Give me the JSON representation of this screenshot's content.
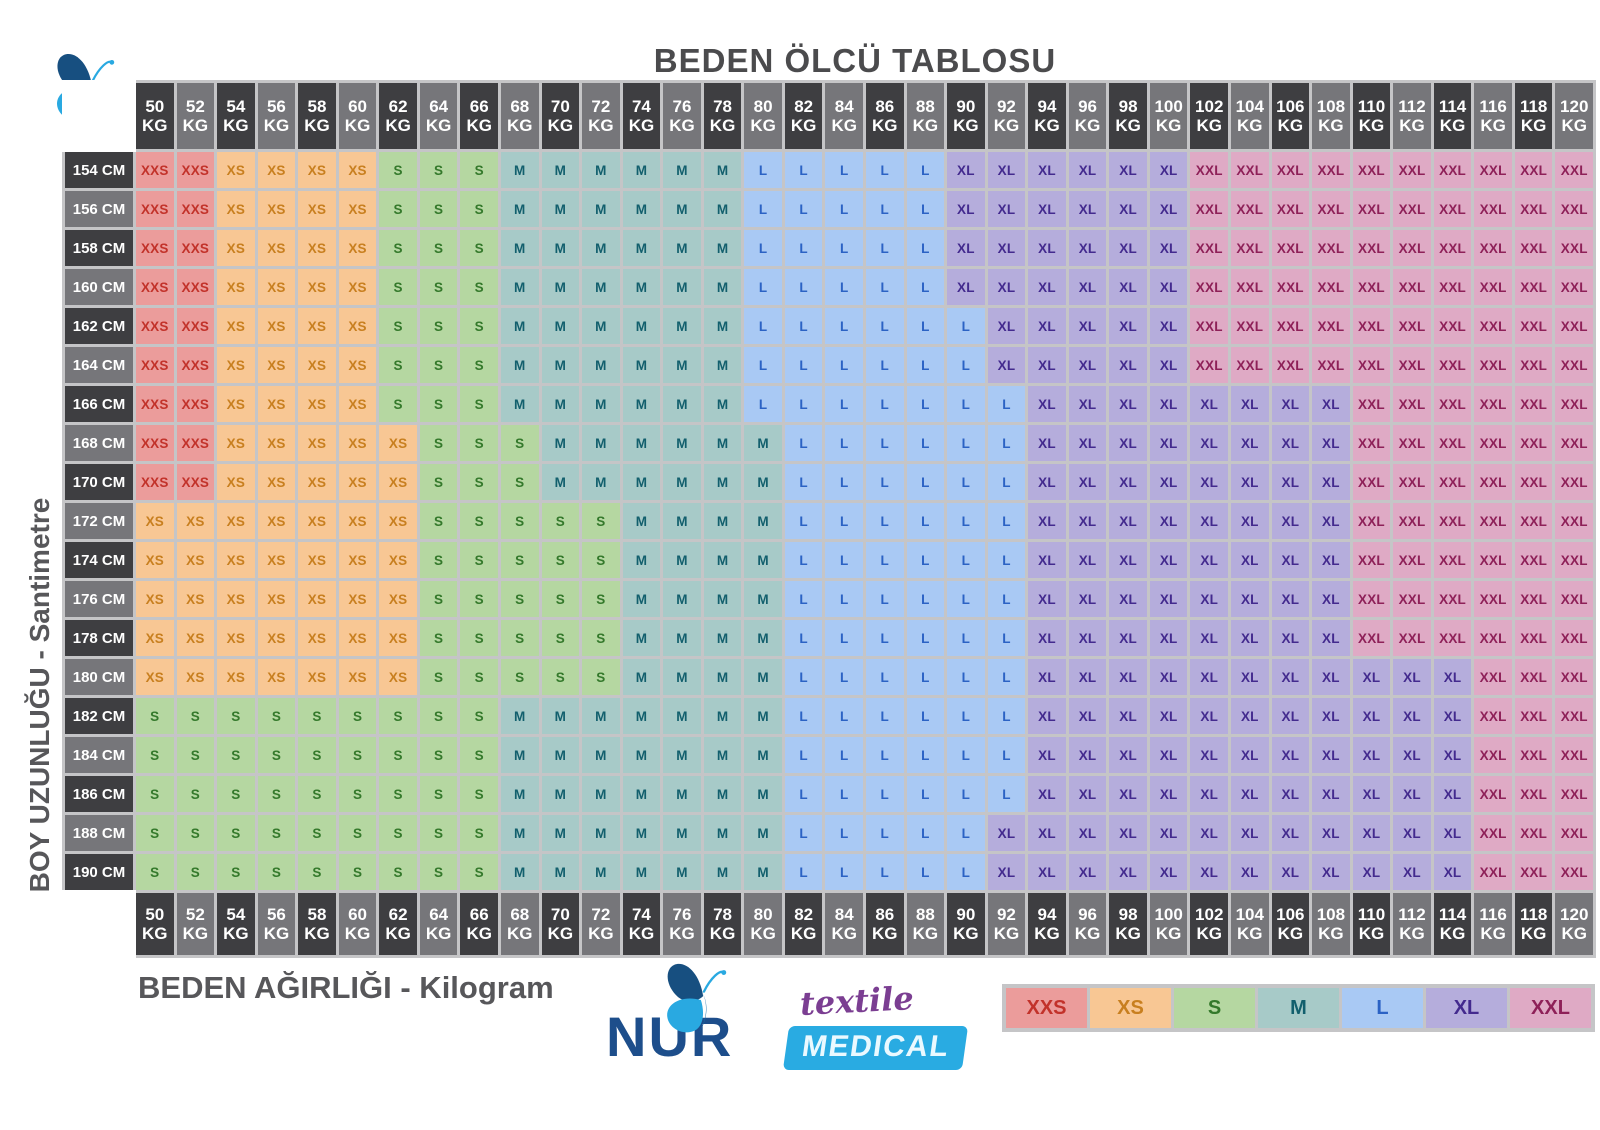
{
  "title": "BEDEN ÖLCÜ TABLOSU",
  "axis": {
    "y": "BOY UZUNLUĞU - Santimetre",
    "x": "BEDEN AĞIRLIĞI - Kilogram"
  },
  "units": {
    "weight": "KG",
    "height": "CM"
  },
  "legend": [
    "XXS",
    "XS",
    "S",
    "M",
    "L",
    "XL",
    "XXL"
  ],
  "size_styles": {
    "XXS": {
      "bg": "#eb9c9b",
      "text": "#c2322a"
    },
    "XS": {
      "bg": "#f8c794",
      "text": "#c87f1f"
    },
    "S": {
      "bg": "#b5d7a1",
      "text": "#34792b"
    },
    "M": {
      "bg": "#a7cac8",
      "text": "#125f6d"
    },
    "L": {
      "bg": "#a9c9f4",
      "text": "#2b62c4"
    },
    "XL": {
      "bg": "#b5addc",
      "text": "#432a8e"
    },
    "XXL": {
      "bg": "#dfaac5",
      "text": "#8e2058"
    }
  },
  "header_colors": {
    "dark": "#3e3e41",
    "light": "#76767a",
    "text": "#ffffff"
  },
  "frame_color": "#c5c5c7",
  "logo": {
    "nur": "NUR",
    "textile": "textile",
    "medical": "MEDICAL"
  },
  "chart_data": {
    "type": "heatmap",
    "title": "BEDEN ÖLCÜ TABLOSU",
    "xlabel": "BEDEN AĞIRLIĞI - Kilogram",
    "ylabel": "BOY UZUNLUĞU - Santimetre",
    "x_weights_kg": [
      50,
      52,
      54,
      56,
      58,
      60,
      62,
      64,
      66,
      68,
      70,
      72,
      74,
      76,
      78,
      80,
      82,
      84,
      86,
      88,
      90,
      92,
      94,
      96,
      98,
      100,
      102,
      104,
      106,
      108,
      110,
      112,
      114,
      116,
      118,
      120
    ],
    "y_heights_cm": [
      154,
      156,
      158,
      160,
      162,
      164,
      166,
      168,
      170,
      172,
      174,
      176,
      178,
      180,
      182,
      184,
      186,
      188,
      190
    ],
    "cell_sizes": [
      [
        "XXS",
        "XXS",
        "XS",
        "XS",
        "XS",
        "XS",
        "S",
        "S",
        "S",
        "M",
        "M",
        "M",
        "M",
        "M",
        "M",
        "L",
        "L",
        "L",
        "L",
        "L",
        "XL",
        "XL",
        "XL",
        "XL",
        "XL",
        "XL",
        "XXL",
        "XXL",
        "XXL",
        "XXL",
        "XXL",
        "XXL",
        "XXL",
        "XXL",
        "XXL",
        "XXL"
      ],
      [
        "XXS",
        "XXS",
        "XS",
        "XS",
        "XS",
        "XS",
        "S",
        "S",
        "S",
        "M",
        "M",
        "M",
        "M",
        "M",
        "M",
        "L",
        "L",
        "L",
        "L",
        "L",
        "XL",
        "XL",
        "XL",
        "XL",
        "XL",
        "XL",
        "XXL",
        "XXL",
        "XXL",
        "XXL",
        "XXL",
        "XXL",
        "XXL",
        "XXL",
        "XXL",
        "XXL"
      ],
      [
        "XXS",
        "XXS",
        "XS",
        "XS",
        "XS",
        "XS",
        "S",
        "S",
        "S",
        "M",
        "M",
        "M",
        "M",
        "M",
        "M",
        "L",
        "L",
        "L",
        "L",
        "L",
        "XL",
        "XL",
        "XL",
        "XL",
        "XL",
        "XL",
        "XXL",
        "XXL",
        "XXL",
        "XXL",
        "XXL",
        "XXL",
        "XXL",
        "XXL",
        "XXL",
        "XXL"
      ],
      [
        "XXS",
        "XXS",
        "XS",
        "XS",
        "XS",
        "XS",
        "S",
        "S",
        "S",
        "M",
        "M",
        "M",
        "M",
        "M",
        "M",
        "L",
        "L",
        "L",
        "L",
        "L",
        "XL",
        "XL",
        "XL",
        "XL",
        "XL",
        "XL",
        "XXL",
        "XXL",
        "XXL",
        "XXL",
        "XXL",
        "XXL",
        "XXL",
        "XXL",
        "XXL",
        "XXL"
      ],
      [
        "XXS",
        "XXS",
        "XS",
        "XS",
        "XS",
        "XS",
        "S",
        "S",
        "S",
        "M",
        "M",
        "M",
        "M",
        "M",
        "M",
        "L",
        "L",
        "L",
        "L",
        "L",
        "L",
        "XL",
        "XL",
        "XL",
        "XL",
        "XL",
        "XXL",
        "XXL",
        "XXL",
        "XXL",
        "XXL",
        "XXL",
        "XXL",
        "XXL",
        "XXL",
        "XXL"
      ],
      [
        "XXS",
        "XXS",
        "XS",
        "XS",
        "XS",
        "XS",
        "S",
        "S",
        "S",
        "M",
        "M",
        "M",
        "M",
        "M",
        "M",
        "L",
        "L",
        "L",
        "L",
        "L",
        "L",
        "XL",
        "XL",
        "XL",
        "XL",
        "XL",
        "XXL",
        "XXL",
        "XXL",
        "XXL",
        "XXL",
        "XXL",
        "XXL",
        "XXL",
        "XXL",
        "XXL"
      ],
      [
        "XXS",
        "XXS",
        "XS",
        "XS",
        "XS",
        "XS",
        "S",
        "S",
        "S",
        "M",
        "M",
        "M",
        "M",
        "M",
        "M",
        "L",
        "L",
        "L",
        "L",
        "L",
        "L",
        "L",
        "XL",
        "XL",
        "XL",
        "XL",
        "XL",
        "XL",
        "XL",
        "XL",
        "XXL",
        "XXL",
        "XXL",
        "XXL",
        "XXL",
        "XXL"
      ],
      [
        "XXS",
        "XXS",
        "XS",
        "XS",
        "XS",
        "XS",
        "XS",
        "S",
        "S",
        "S",
        "M",
        "M",
        "M",
        "M",
        "M",
        "M",
        "L",
        "L",
        "L",
        "L",
        "L",
        "L",
        "XL",
        "XL",
        "XL",
        "XL",
        "XL",
        "XL",
        "XL",
        "XL",
        "XXL",
        "XXL",
        "XXL",
        "XXL",
        "XXL",
        "XXL"
      ],
      [
        "XXS",
        "XXS",
        "XS",
        "XS",
        "XS",
        "XS",
        "XS",
        "S",
        "S",
        "S",
        "M",
        "M",
        "M",
        "M",
        "M",
        "M",
        "L",
        "L",
        "L",
        "L",
        "L",
        "L",
        "XL",
        "XL",
        "XL",
        "XL",
        "XL",
        "XL",
        "XL",
        "XL",
        "XXL",
        "XXL",
        "XXL",
        "XXL",
        "XXL",
        "XXL"
      ],
      [
        "XS",
        "XS",
        "XS",
        "XS",
        "XS",
        "XS",
        "XS",
        "S",
        "S",
        "S",
        "S",
        "S",
        "M",
        "M",
        "M",
        "M",
        "L",
        "L",
        "L",
        "L",
        "L",
        "L",
        "XL",
        "XL",
        "XL",
        "XL",
        "XL",
        "XL",
        "XL",
        "XL",
        "XXL",
        "XXL",
        "XXL",
        "XXL",
        "XXL",
        "XXL"
      ],
      [
        "XS",
        "XS",
        "XS",
        "XS",
        "XS",
        "XS",
        "XS",
        "S",
        "S",
        "S",
        "S",
        "S",
        "M",
        "M",
        "M",
        "M",
        "L",
        "L",
        "L",
        "L",
        "L",
        "L",
        "XL",
        "XL",
        "XL",
        "XL",
        "XL",
        "XL",
        "XL",
        "XL",
        "XXL",
        "XXL",
        "XXL",
        "XXL",
        "XXL",
        "XXL"
      ],
      [
        "XS",
        "XS",
        "XS",
        "XS",
        "XS",
        "XS",
        "XS",
        "S",
        "S",
        "S",
        "S",
        "S",
        "M",
        "M",
        "M",
        "M",
        "L",
        "L",
        "L",
        "L",
        "L",
        "L",
        "XL",
        "XL",
        "XL",
        "XL",
        "XL",
        "XL",
        "XL",
        "XL",
        "XXL",
        "XXL",
        "XXL",
        "XXL",
        "XXL",
        "XXL"
      ],
      [
        "XS",
        "XS",
        "XS",
        "XS",
        "XS",
        "XS",
        "XS",
        "S",
        "S",
        "S",
        "S",
        "S",
        "M",
        "M",
        "M",
        "M",
        "L",
        "L",
        "L",
        "L",
        "L",
        "L",
        "XL",
        "XL",
        "XL",
        "XL",
        "XL",
        "XL",
        "XL",
        "XL",
        "XXL",
        "XXL",
        "XXL",
        "XXL",
        "XXL",
        "XXL"
      ],
      [
        "XS",
        "XS",
        "XS",
        "XS",
        "XS",
        "XS",
        "XS",
        "S",
        "S",
        "S",
        "S",
        "S",
        "M",
        "M",
        "M",
        "M",
        "L",
        "L",
        "L",
        "L",
        "L",
        "L",
        "XL",
        "XL",
        "XL",
        "XL",
        "XL",
        "XL",
        "XL",
        "XL",
        "XL",
        "XL",
        "XL",
        "XXL",
        "XXL",
        "XXL"
      ],
      [
        "S",
        "S",
        "S",
        "S",
        "S",
        "S",
        "S",
        "S",
        "S",
        "M",
        "M",
        "M",
        "M",
        "M",
        "M",
        "M",
        "L",
        "L",
        "L",
        "L",
        "L",
        "L",
        "XL",
        "XL",
        "XL",
        "XL",
        "XL",
        "XL",
        "XL",
        "XL",
        "XL",
        "XL",
        "XL",
        "XXL",
        "XXL",
        "XXL"
      ],
      [
        "S",
        "S",
        "S",
        "S",
        "S",
        "S",
        "S",
        "S",
        "S",
        "M",
        "M",
        "M",
        "M",
        "M",
        "M",
        "M",
        "L",
        "L",
        "L",
        "L",
        "L",
        "L",
        "XL",
        "XL",
        "XL",
        "XL",
        "XL",
        "XL",
        "XL",
        "XL",
        "XL",
        "XL",
        "XL",
        "XXL",
        "XXL",
        "XXL"
      ],
      [
        "S",
        "S",
        "S",
        "S",
        "S",
        "S",
        "S",
        "S",
        "S",
        "M",
        "M",
        "M",
        "M",
        "M",
        "M",
        "M",
        "L",
        "L",
        "L",
        "L",
        "L",
        "L",
        "XL",
        "XL",
        "XL",
        "XL",
        "XL",
        "XL",
        "XL",
        "XL",
        "XL",
        "XL",
        "XL",
        "XXL",
        "XXL",
        "XXL"
      ],
      [
        "S",
        "S",
        "S",
        "S",
        "S",
        "S",
        "S",
        "S",
        "S",
        "M",
        "M",
        "M",
        "M",
        "M",
        "M",
        "M",
        "L",
        "L",
        "L",
        "L",
        "L",
        "XL",
        "XL",
        "XL",
        "XL",
        "XL",
        "XL",
        "XL",
        "XL",
        "XL",
        "XL",
        "XL",
        "XL",
        "XXL",
        "XXL",
        "XXL"
      ],
      [
        "S",
        "S",
        "S",
        "S",
        "S",
        "S",
        "S",
        "S",
        "S",
        "M",
        "M",
        "M",
        "M",
        "M",
        "M",
        "M",
        "L",
        "L",
        "L",
        "L",
        "L",
        "XL",
        "XL",
        "XL",
        "XL",
        "XL",
        "XL",
        "XL",
        "XL",
        "XL",
        "XL",
        "XL",
        "XL",
        "XXL",
        "XXL",
        "XXL"
      ]
    ]
  }
}
